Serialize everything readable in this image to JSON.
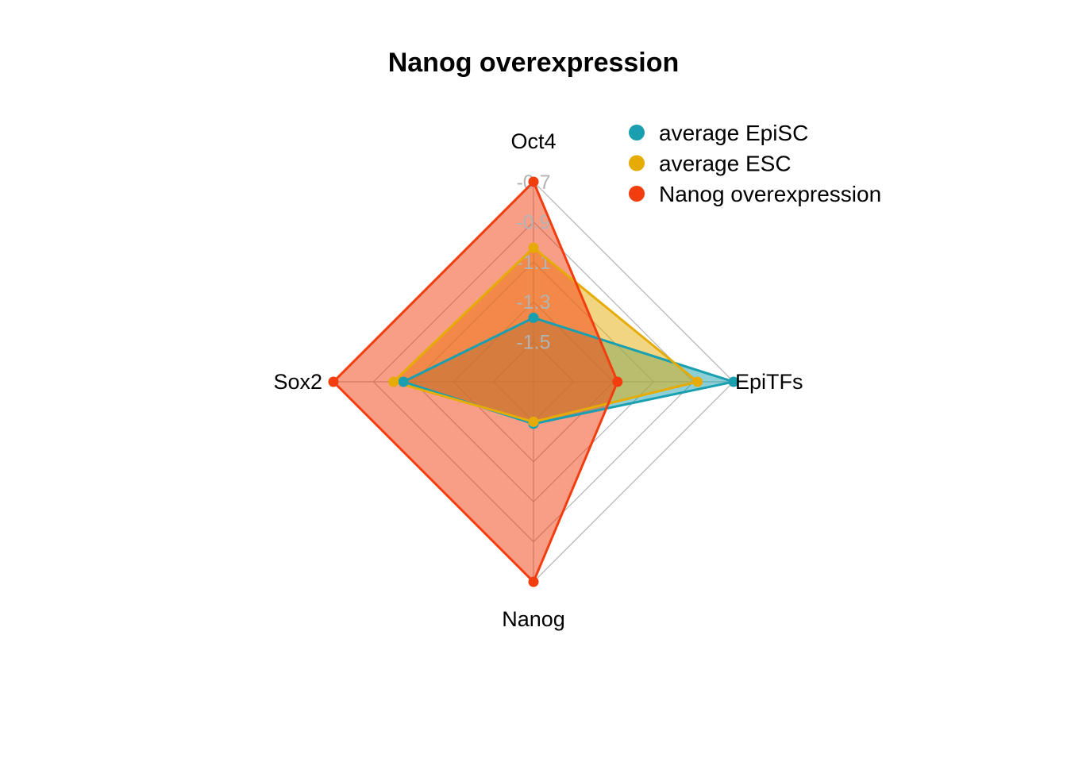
{
  "chart_data": {
    "type": "radar",
    "title": "Nanog overexpression",
    "axes": [
      "Oct4",
      "EpiTFs",
      "Nanog",
      "Sox2"
    ],
    "range": [
      -1.7,
      -0.7
    ],
    "grid_ticks": [
      "-1.5",
      "-1.3",
      "-1.1",
      "-0.9",
      "-0.7"
    ],
    "grid_values": [
      -1.5,
      -1.3,
      -1.1,
      -0.9,
      -0.7
    ],
    "legend_position": "top-right",
    "series": [
      {
        "name": "average EpiSC",
        "color": "#1a9fb0",
        "values": [
          -1.38,
          -0.7,
          -1.49,
          -1.05
        ]
      },
      {
        "name": "average ESC",
        "color": "#e6ac05",
        "values": [
          -1.03,
          -0.88,
          -1.5,
          -1.0
        ]
      },
      {
        "name": "Nanog overexpression",
        "color": "#f23d0f",
        "values": [
          -0.7,
          -1.28,
          -0.7,
          -0.7
        ]
      }
    ]
  }
}
